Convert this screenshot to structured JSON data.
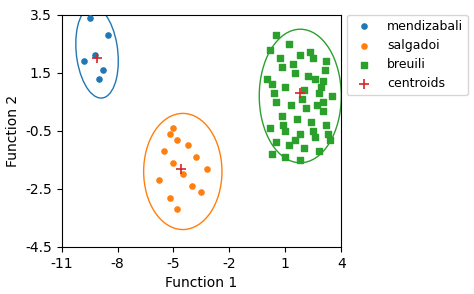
{
  "chart_data": {
    "type": "scatter",
    "xlabel": "Function 1",
    "ylabel": "Function 2",
    "xlim": [
      -11,
      4
    ],
    "ylim": [
      -4.5,
      3.5
    ],
    "xticks": [
      -11,
      -8,
      -5,
      -2,
      1,
      4
    ],
    "yticks": [
      -4.5,
      -2.5,
      -0.5,
      1.5,
      3.5
    ],
    "legend": "upper left",
    "series": [
      {
        "name": "mendizabali",
        "marker": "o",
        "values": [
          [
            -9.5,
            3.4
          ],
          [
            -8.5,
            2.8
          ],
          [
            -9.2,
            2.1
          ],
          [
            -9.8,
            1.9
          ],
          [
            -8.8,
            1.6
          ],
          [
            -9.0,
            1.3
          ]
        ],
        "ellipse": {
          "x": -9.1,
          "y": 2.2,
          "width": 2.2,
          "height": 3.2,
          "angle": 15
        }
      },
      {
        "name": "salgadoi",
        "marker": "o",
        "values": [
          [
            -5.2,
            -0.6
          ],
          [
            -4.8,
            -0.8
          ],
          [
            -5.5,
            -1.2
          ],
          [
            -4.2,
            -1.0
          ],
          [
            -3.8,
            -1.4
          ],
          [
            -5.0,
            -1.6
          ],
          [
            -4.5,
            -2.0
          ],
          [
            -5.8,
            -2.2
          ],
          [
            -4.0,
            -2.4
          ],
          [
            -3.5,
            -2.6
          ],
          [
            -5.2,
            -2.8
          ],
          [
            -4.8,
            -3.2
          ],
          [
            -5.0,
            -0.4
          ],
          [
            -3.2,
            -1.8
          ]
        ],
        "ellipse": {
          "x": -4.5,
          "y": -1.9,
          "width": 4.2,
          "height": 4.0,
          "angle": 0
        }
      },
      {
        "name": "breuili",
        "marker": "s",
        "values": [
          [
            0.5,
            2.8
          ],
          [
            1.2,
            2.5
          ],
          [
            0.2,
            2.3
          ],
          [
            1.8,
            2.1
          ],
          [
            2.5,
            2.0
          ],
          [
            3.2,
            1.9
          ],
          [
            0.8,
            1.7
          ],
          [
            1.5,
            1.5
          ],
          [
            2.2,
            1.4
          ],
          [
            3.0,
            1.2
          ],
          [
            0.3,
            1.1
          ],
          [
            1.0,
            1.0
          ],
          [
            2.0,
            0.9
          ],
          [
            2.8,
            0.8
          ],
          [
            3.5,
            0.7
          ],
          [
            0.5,
            0.5
          ],
          [
            1.3,
            0.4
          ],
          [
            2.1,
            0.3
          ],
          [
            3.0,
            0.2
          ],
          [
            0.8,
            0.0
          ],
          [
            1.6,
            -0.1
          ],
          [
            2.4,
            -0.2
          ],
          [
            3.2,
            -0.3
          ],
          [
            0.2,
            -0.4
          ],
          [
            1.0,
            -0.5
          ],
          [
            1.8,
            -0.6
          ],
          [
            2.6,
            -0.7
          ],
          [
            3.4,
            -0.8
          ],
          [
            0.5,
            -0.9
          ],
          [
            1.2,
            -1.0
          ],
          [
            2.0,
            -1.1
          ],
          [
            2.8,
            -1.2
          ],
          [
            0.3,
            -1.3
          ],
          [
            1.0,
            -1.4
          ],
          [
            1.8,
            -1.5
          ],
          [
            2.5,
            -0.5
          ],
          [
            3.0,
            0.5
          ],
          [
            0.0,
            1.3
          ],
          [
            2.9,
            1.0
          ],
          [
            1.5,
            -0.8
          ],
          [
            0.7,
            2.0
          ],
          [
            2.3,
            2.2
          ],
          [
            3.1,
            1.6
          ],
          [
            0.4,
            0.8
          ],
          [
            1.9,
            0.6
          ],
          [
            2.7,
            0.4
          ],
          [
            0.9,
            -0.3
          ],
          [
            3.3,
            -0.6
          ],
          [
            1.4,
            1.8
          ],
          [
            2.6,
            1.3
          ]
        ],
        "ellipse": {
          "x": 1.8,
          "y": 0.7,
          "width": 4.4,
          "height": 4.6,
          "angle": 0
        }
      },
      {
        "name": "centroids",
        "marker": "+",
        "values": [
          [
            -9.1,
            2.0
          ],
          [
            -4.6,
            -1.8
          ],
          [
            1.8,
            0.8
          ]
        ]
      }
    ]
  }
}
